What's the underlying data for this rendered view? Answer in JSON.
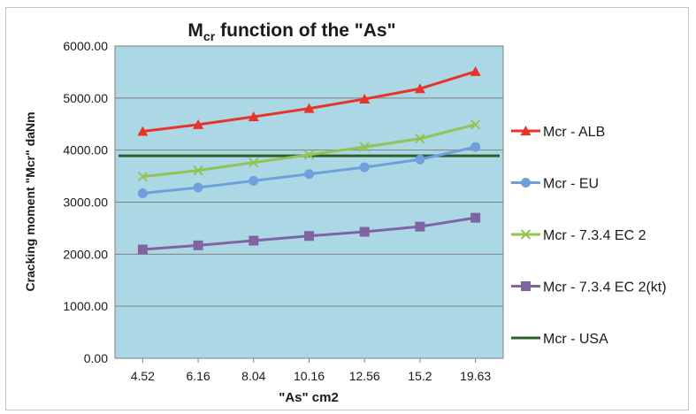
{
  "chart_data": {
    "type": "line",
    "title": "function of the \"As\"",
    "title_prefix": "M",
    "title_subscript": "cr",
    "xlabel": "\"As\" cm2",
    "ylabel": "Cracking moment \"Mcr\" daNm",
    "categories": [
      "4.52",
      "6.16",
      "8.04",
      "10.16",
      "12.56",
      "15.2",
      "19.63"
    ],
    "yticks": [
      "0.00",
      "1000.00",
      "2000.00",
      "3000.00",
      "4000.00",
      "5000.00",
      "6000.00"
    ],
    "ylim": [
      0,
      6000
    ],
    "grid": true,
    "legend_position": "right",
    "plot_background": "#acd8e6",
    "series": [
      {
        "name": "Mcr - ALB",
        "color": "#e8332a",
        "marker": "triangle",
        "values": [
          4360,
          4490,
          4640,
          4800,
          4980,
          5180,
          5510
        ]
      },
      {
        "name": "Mcr - EU",
        "color": "#6fa0dc",
        "marker": "circle",
        "values": [
          3170,
          3280,
          3410,
          3540,
          3670,
          3820,
          4060
        ]
      },
      {
        "name": "Mcr - 7.3.4 EC 2",
        "color": "#92c353",
        "marker": "x",
        "values": [
          3490,
          3610,
          3760,
          3910,
          4060,
          4220,
          4490
        ]
      },
      {
        "name": "Mcr - 7.3.4 EC 2(kt)",
        "color": "#8064a2",
        "marker": "square",
        "values": [
          2090,
          2170,
          2260,
          2350,
          2430,
          2530,
          2700
        ]
      },
      {
        "name": "Mcr - USA",
        "color": "#2e5e2a",
        "marker": "none",
        "values": [
          3890,
          3890,
          3890,
          3890,
          3890,
          3890,
          3890
        ]
      }
    ]
  }
}
